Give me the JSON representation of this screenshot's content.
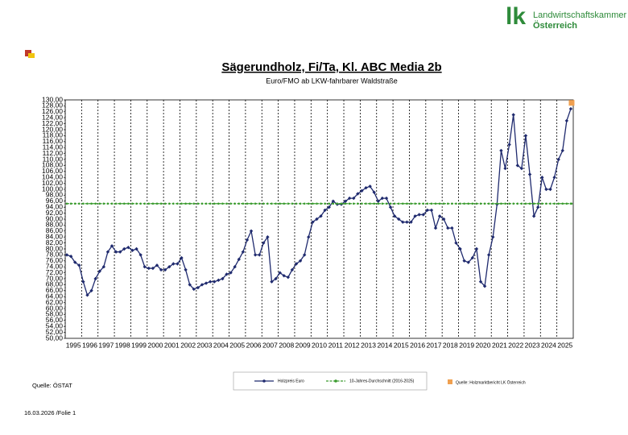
{
  "logo": {
    "mark": "lk",
    "line1": "Landwirtschaftskammer",
    "line2": "Österreich"
  },
  "source": "Quelle: ÖSTAT",
  "footer": "16.03.2026 /Folie 1",
  "chart_data": {
    "type": "line",
    "title": "Sägerundholz, Fi/Ta, Kl. ABC Media 2b",
    "subtitle": "Euro/FMO ab LKW-fahrbarer Waldstraße",
    "xlim": [
      1995,
      2026
    ],
    "xticks": [
      1995,
      1996,
      1997,
      1998,
      1999,
      2000,
      2001,
      2002,
      2003,
      2004,
      2005,
      2006,
      2007,
      2008,
      2009,
      2010,
      2011,
      2012,
      2013,
      2014,
      2015,
      2016,
      2017,
      2018,
      2019,
      2020,
      2021,
      2022,
      2023,
      2024,
      2025
    ],
    "xgrid": true,
    "ylim": [
      50,
      130
    ],
    "yticks": [
      {
        "value": 50,
        "label": "50,00"
      },
      {
        "value": 52,
        "label": "52,00"
      },
      {
        "value": 54,
        "label": "54,00"
      },
      {
        "value": 56,
        "label": "56,00"
      },
      {
        "value": 58,
        "label": "58,00"
      },
      {
        "value": 60,
        "label": "60,00"
      },
      {
        "value": 62,
        "label": "62,00"
      },
      {
        "value": 64,
        "label": "64,00"
      },
      {
        "value": 66,
        "label": "66,00"
      },
      {
        "value": 68,
        "label": "68,00"
      },
      {
        "value": 70,
        "label": "70,00"
      },
      {
        "value": 72,
        "label": "72,00"
      },
      {
        "value": 74,
        "label": "74,00"
      },
      {
        "value": 76,
        "label": "76,00"
      },
      {
        "value": 78,
        "label": "78,00"
      },
      {
        "value": 80,
        "label": "80,00"
      },
      {
        "value": 82,
        "label": "82,00"
      },
      {
        "value": 84,
        "label": "84,00"
      },
      {
        "value": 86,
        "label": "86,00"
      },
      {
        "value": 88,
        "label": "88,00"
      },
      {
        "value": 90,
        "label": "90,00"
      },
      {
        "value": 92,
        "label": "92,00"
      },
      {
        "value": 94,
        "label": "94,00"
      },
      {
        "value": 96,
        "label": "96,00"
      },
      {
        "value": 98,
        "label": "98,00"
      },
      {
        "value": 100,
        "label": "100,00"
      },
      {
        "value": 102,
        "label": "102,00"
      },
      {
        "value": 104,
        "label": "104,00"
      },
      {
        "value": 106,
        "label": "106,00"
      },
      {
        "value": 108,
        "label": "108,00"
      },
      {
        "value": 110,
        "label": "110,00"
      },
      {
        "value": 112,
        "label": "112,00"
      },
      {
        "value": 114,
        "label": "114,00"
      },
      {
        "value": 116,
        "label": "116,00"
      },
      {
        "value": 118,
        "label": "118,00"
      },
      {
        "value": 120,
        "label": "120,00"
      },
      {
        "value": 122,
        "label": "122,00"
      },
      {
        "value": 124,
        "label": "124,00"
      },
      {
        "value": 126,
        "label": "126,00"
      },
      {
        "value": 128,
        "label": "128,00"
      },
      {
        "value": 130,
        "label": "130,00"
      }
    ],
    "x": [
      1995.1,
      1995.35,
      1995.6,
      1995.85,
      1996.1,
      1996.35,
      1996.6,
      1996.85,
      1997.1,
      1997.35,
      1997.6,
      1997.85,
      1998.1,
      1998.35,
      1998.6,
      1998.85,
      1999.1,
      1999.35,
      1999.6,
      1999.85,
      2000.1,
      2000.35,
      2000.6,
      2000.85,
      2001.1,
      2001.35,
      2001.6,
      2001.85,
      2002.1,
      2002.35,
      2002.6,
      2002.85,
      2003.1,
      2003.35,
      2003.6,
      2003.85,
      2004.1,
      2004.35,
      2004.6,
      2004.85,
      2005.1,
      2005.35,
      2005.6,
      2005.85,
      2006.1,
      2006.35,
      2006.6,
      2006.85,
      2007.1,
      2007.35,
      2007.6,
      2007.85,
      2008.1,
      2008.35,
      2008.6,
      2008.85,
      2009.1,
      2009.35,
      2009.6,
      2009.85,
      2010.1,
      2010.35,
      2010.6,
      2010.85,
      2011.1,
      2011.35,
      2011.6,
      2011.85,
      2012.1,
      2012.35,
      2012.6,
      2012.85,
      2013.1,
      2013.35,
      2013.6,
      2013.85,
      2014.1,
      2014.35,
      2014.6,
      2014.85,
      2015.1,
      2015.35,
      2015.6,
      2015.85,
      2016.1,
      2016.35,
      2016.6,
      2016.85,
      2017.1,
      2017.35,
      2017.6,
      2017.85,
      2018.1,
      2018.35,
      2018.6,
      2018.85,
      2019.1,
      2019.35,
      2019.6,
      2019.85,
      2020.1,
      2020.35,
      2020.6,
      2020.85,
      2021.1,
      2021.35,
      2021.6,
      2021.85,
      2022.1,
      2022.35,
      2022.6,
      2022.85,
      2023.1,
      2023.35,
      2023.6,
      2023.85,
      2024.1,
      2024.35,
      2024.6,
      2024.85,
      2025.1,
      2025.35,
      2025.6,
      2025.85,
      2025.9
    ],
    "series": [
      {
        "name": "Holzpreis Euro",
        "color": "#1f2a6e",
        "marker": "diamond",
        "values": [
          78,
          77.5,
          75.5,
          74.5,
          69,
          64.5,
          66,
          70,
          72.5,
          74,
          79,
          81,
          79,
          79,
          80,
          80.5,
          79.5,
          80,
          78,
          74,
          73.5,
          73.5,
          74.5,
          73,
          73,
          74,
          75,
          75,
          77,
          73,
          68,
          66.5,
          67,
          68,
          68.5,
          69,
          69,
          69.5,
          70,
          71.5,
          72,
          74,
          76.5,
          79,
          83,
          86,
          78,
          78,
          82,
          84,
          69,
          70,
          72,
          71,
          70.5,
          73,
          75,
          76,
          78,
          84,
          89,
          90,
          91,
          93,
          94,
          96,
          95,
          95,
          96,
          97,
          97,
          98.5,
          99.5,
          100.5,
          101,
          99,
          96,
          97,
          97,
          94,
          91,
          90,
          89,
          89,
          89,
          91,
          91.5,
          91.5,
          93,
          93,
          87,
          91,
          90,
          87,
          87,
          82,
          80,
          76,
          75.5,
          77,
          80,
          69,
          67.5,
          78,
          84,
          95,
          113,
          107,
          115,
          125,
          108,
          107,
          118,
          105,
          91,
          94,
          104,
          100,
          100,
          104,
          110,
          113,
          123,
          127,
          null
        ]
      },
      {
        "name": "10-Jahres-Durchschnitt (2016-2025)",
        "color": "#3a9b2e",
        "marker": "dot",
        "dash": true,
        "values": [
          95.2,
          95.2,
          95.2,
          95.2,
          95.2,
          95.2,
          95.2,
          95.2,
          95.2,
          95.2,
          95.2,
          95.2,
          95.2,
          95.2,
          95.2,
          95.2,
          95.2,
          95.2,
          95.2,
          95.2,
          95.2,
          95.2,
          95.2,
          95.2,
          95.2,
          95.2,
          95.2,
          95.2,
          95.2,
          95.2,
          95.2,
          95.2,
          95.2,
          95.2,
          95.2,
          95.2,
          95.2,
          95.2,
          95.2,
          95.2,
          95.2,
          95.2,
          95.2,
          95.2,
          95.2,
          95.2,
          95.2,
          95.2,
          95.2,
          95.2,
          95.2,
          95.2,
          95.2,
          95.2,
          95.2,
          95.2,
          95.2,
          95.2,
          95.2,
          95.2,
          95.2,
          95.2,
          95.2,
          95.2,
          95.2,
          95.2,
          95.2,
          95.2,
          95.2,
          95.2,
          95.2,
          95.2,
          95.2,
          95.2,
          95.2,
          95.2,
          95.2,
          95.2,
          95.2,
          95.2,
          95.2,
          95.2,
          95.2,
          95.2,
          95.2,
          95.2,
          95.2,
          95.2,
          95.2,
          95.2,
          95.2,
          95.2,
          95.2,
          95.2,
          95.2,
          95.2,
          95.2,
          95.2,
          95.2,
          95.2,
          95.2,
          95.2,
          95.2,
          95.2,
          95.2,
          95.2,
          95.2,
          95.2,
          95.2,
          95.2,
          95.2,
          95.2,
          95.2,
          95.2,
          95.2,
          95.2,
          95.2,
          95.2,
          95.2,
          95.2,
          95.2,
          95.2,
          95.2,
          95.2,
          95.2
        ]
      },
      {
        "name": "Quelle: Holzmarktbericht LK Österreich",
        "color": "#f0a050",
        "marker": "square",
        "values": [
          null,
          null,
          null,
          null,
          null,
          null,
          null,
          null,
          null,
          null,
          null,
          null,
          null,
          null,
          null,
          null,
          null,
          null,
          null,
          null,
          null,
          null,
          null,
          null,
          null,
          null,
          null,
          null,
          null,
          null,
          null,
          null,
          null,
          null,
          null,
          null,
          null,
          null,
          null,
          null,
          null,
          null,
          null,
          null,
          null,
          null,
          null,
          null,
          null,
          null,
          null,
          null,
          null,
          null,
          null,
          null,
          null,
          null,
          null,
          null,
          null,
          null,
          null,
          null,
          null,
          null,
          null,
          null,
          null,
          null,
          null,
          null,
          null,
          null,
          null,
          null,
          null,
          null,
          null,
          null,
          null,
          null,
          null,
          null,
          null,
          null,
          null,
          null,
          null,
          null,
          null,
          null,
          null,
          null,
          null,
          null,
          null,
          null,
          null,
          null,
          null,
          null,
          null,
          null,
          null,
          null,
          null,
          null,
          null,
          null,
          null,
          null,
          null,
          null,
          null,
          null,
          null,
          null,
          null,
          null,
          null,
          null,
          null,
          null,
          129
        ]
      }
    ]
  }
}
